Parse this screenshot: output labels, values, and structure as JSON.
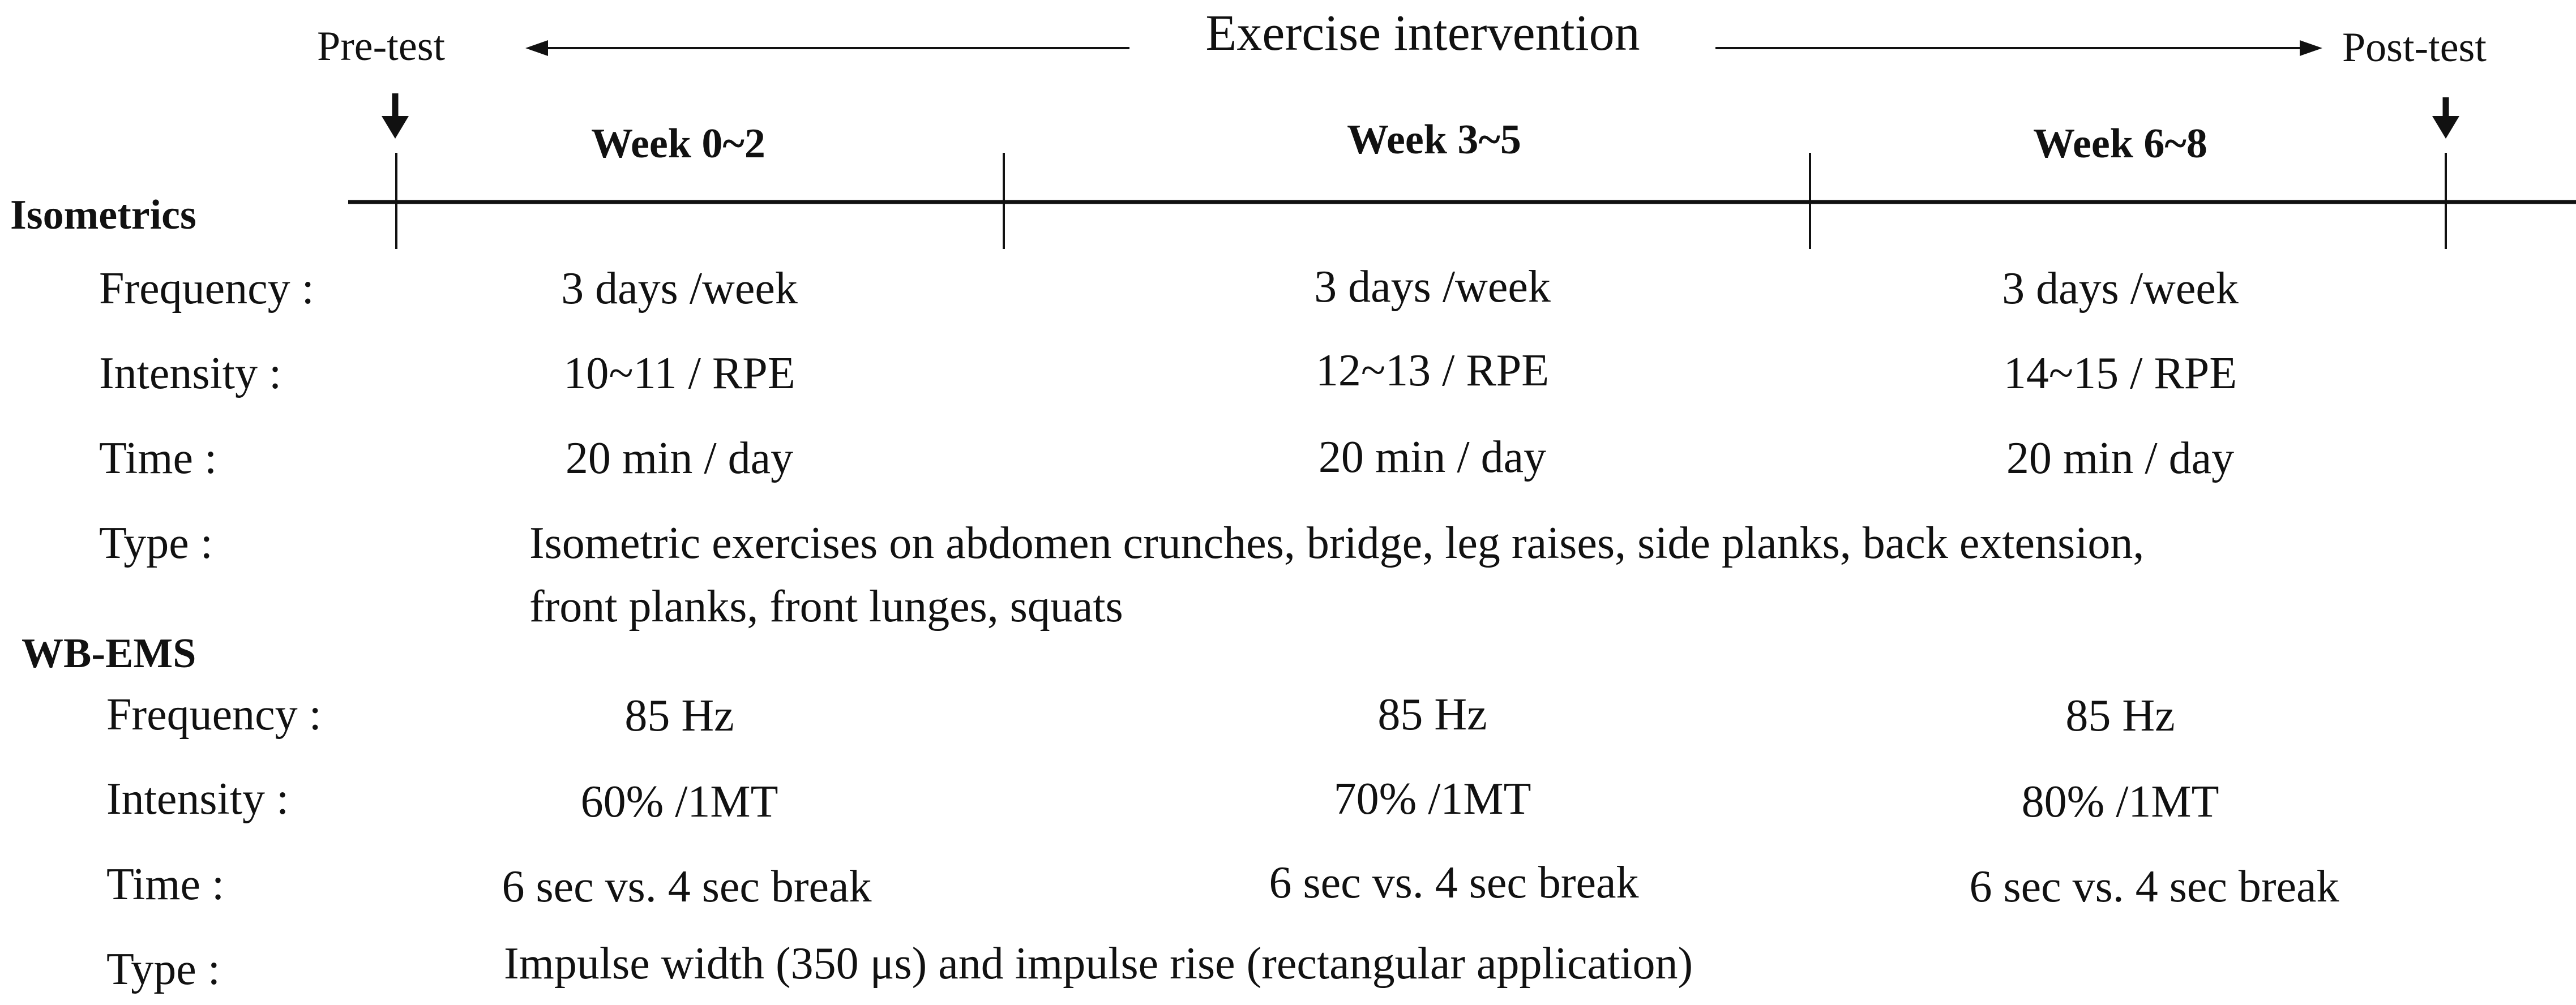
{
  "header": {
    "pre_test": "Pre-test",
    "post_test": "Post-test",
    "intervention": "Exercise intervention"
  },
  "weeks": [
    "Week 0~2",
    "Week 3~5",
    "Week 6~8"
  ],
  "isometrics": {
    "title": "Isometrics",
    "frequency": {
      "label": "Frequency :",
      "values": [
        "3 days /week",
        "3 days /week",
        "3 days /week"
      ]
    },
    "intensity": {
      "label": "Intensity :",
      "values": [
        "10~11 / RPE",
        "12~13 / RPE",
        "14~15 / RPE"
      ]
    },
    "time": {
      "label": "Time :",
      "values": [
        "20 min / day",
        "20 min / day",
        "20 min / day"
      ]
    },
    "type": {
      "label": "Type :",
      "line1": "Isometric exercises on abdomen crunches, bridge, leg raises, side planks, back extension,",
      "line2": "front planks, front lunges, squats"
    }
  },
  "wbems": {
    "title": "WB-EMS",
    "frequency": {
      "label": "Frequency :",
      "values": [
        "85 Hz",
        "85 Hz",
        "85 Hz"
      ]
    },
    "intensity": {
      "label": "Intensity :",
      "values": [
        "60% /1MT",
        "70% /1MT",
        "80% /1MT"
      ]
    },
    "time": {
      "label": "Time :",
      "values": [
        "6 sec vs. 4 sec break",
        "6 sec vs. 4 sec break",
        "6 sec vs. 4 sec break"
      ]
    },
    "type": {
      "label": "Type :",
      "text": "Impulse width (350 μs) and impulse rise (rectangular application)"
    }
  }
}
